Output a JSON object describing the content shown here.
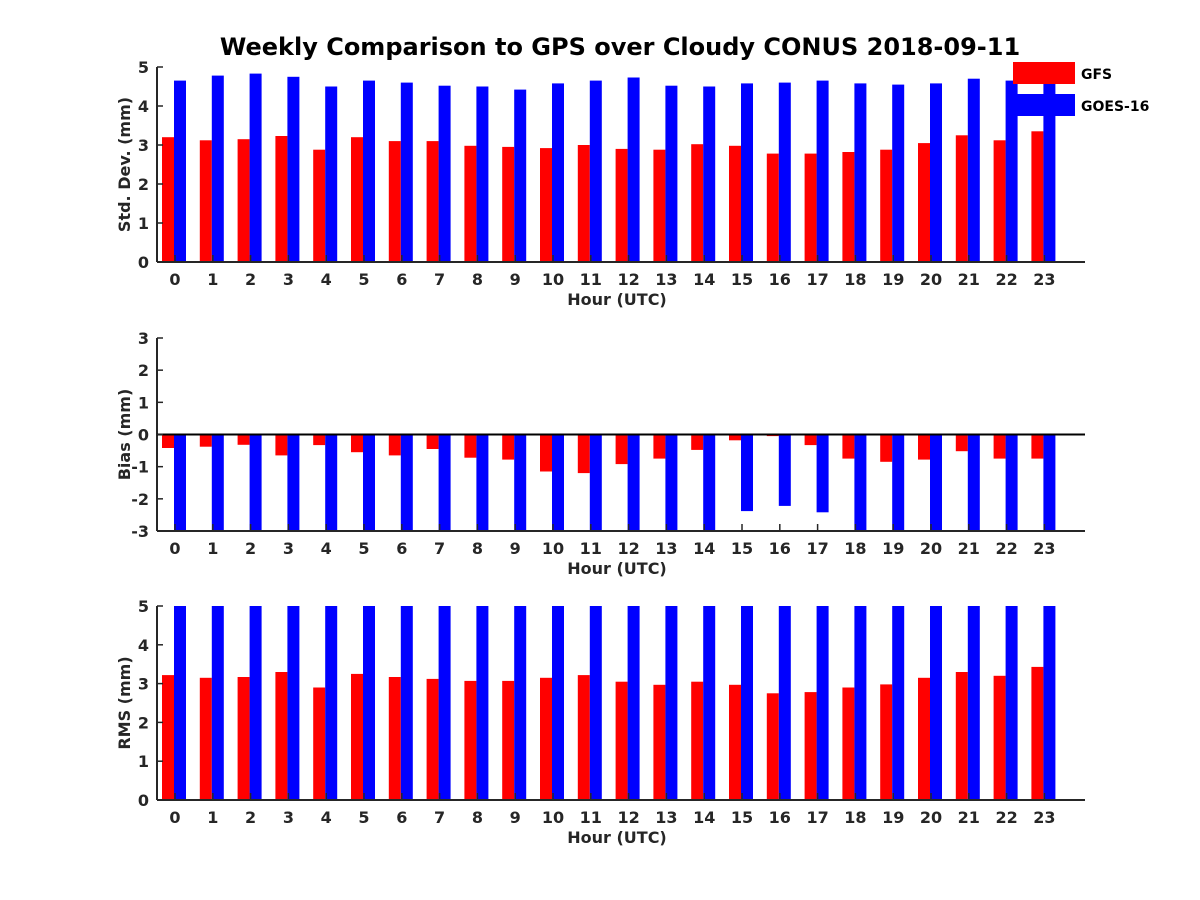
{
  "chart_data": {
    "type": "bar",
    "title": "Weekly Comparison to GPS over Cloudy CONUS 2018-09-11",
    "legend": {
      "placement": "top-right",
      "entries": [
        {
          "name": "GFS",
          "color": "#ff0000"
        },
        {
          "name": "GOES-16",
          "color": "#0000ff"
        }
      ]
    },
    "panels": [
      {
        "ylabel": "Std. Dev. (mm)",
        "xlabel": "Hour (UTC)",
        "ylim": [
          0,
          5
        ],
        "yticks": [
          "0",
          "1",
          "2",
          "3",
          "4",
          "5"
        ],
        "categories": [
          "0",
          "1",
          "2",
          "3",
          "4",
          "5",
          "6",
          "7",
          "8",
          "9",
          "10",
          "11",
          "12",
          "13",
          "14",
          "15",
          "16",
          "17",
          "18",
          "19",
          "20",
          "21",
          "22",
          "23"
        ],
        "series": [
          {
            "name": "GFS",
            "values": [
              3.2,
              3.12,
              3.15,
              3.23,
              2.88,
              3.2,
              3.1,
              3.1,
              2.98,
              2.95,
              2.92,
              3.0,
              2.9,
              2.88,
              3.02,
              2.98,
              2.78,
              2.78,
              2.82,
              2.88,
              3.05,
              3.25,
              3.12,
              3.35
            ]
          },
          {
            "name": "GOES-16",
            "values": [
              4.65,
              4.78,
              4.83,
              4.75,
              4.5,
              4.65,
              4.6,
              4.52,
              4.5,
              4.42,
              4.58,
              4.65,
              4.73,
              4.52,
              4.5,
              4.58,
              4.6,
              4.65,
              4.58,
              4.55,
              4.58,
              4.7,
              4.65,
              4.65
            ]
          }
        ]
      },
      {
        "ylabel": "Bias (mm)",
        "xlabel": "Hour (UTC)",
        "ylim": [
          -3,
          3
        ],
        "yticks": [
          "-3",
          "-2",
          "-1",
          "0",
          "1",
          "2",
          "3"
        ],
        "categories": [
          "0",
          "1",
          "2",
          "3",
          "4",
          "5",
          "6",
          "7",
          "8",
          "9",
          "10",
          "11",
          "12",
          "13",
          "14",
          "15",
          "16",
          "17",
          "18",
          "19",
          "20",
          "21",
          "22",
          "23"
        ],
        "series": [
          {
            "name": "GFS",
            "values": [
              -0.42,
              -0.38,
              -0.32,
              -0.65,
              -0.33,
              -0.55,
              -0.65,
              -0.45,
              -0.72,
              -0.78,
              -1.15,
              -1.2,
              -0.92,
              -0.75,
              -0.48,
              -0.18,
              -0.05,
              -0.33,
              -0.75,
              -0.85,
              -0.78,
              -0.52,
              -0.75,
              -0.75
            ]
          },
          {
            "name": "GOES-16",
            "values": [
              -3,
              -3,
              -3,
              -3,
              -3,
              -3,
              -3,
              -3,
              -3,
              -3,
              -3,
              -3,
              -3,
              -3,
              -3,
              -2.38,
              -2.22,
              -2.42,
              -3,
              -3,
              -3,
              -3,
              -3,
              -3
            ]
          }
        ]
      },
      {
        "ylabel": "RMS (mm)",
        "xlabel": "Hour (UTC)",
        "ylim": [
          0,
          5
        ],
        "yticks": [
          "0",
          "1",
          "2",
          "3",
          "4",
          "5"
        ],
        "categories": [
          "0",
          "1",
          "2",
          "3",
          "4",
          "5",
          "6",
          "7",
          "8",
          "9",
          "10",
          "11",
          "12",
          "13",
          "14",
          "15",
          "16",
          "17",
          "18",
          "19",
          "20",
          "21",
          "22",
          "23"
        ],
        "series": [
          {
            "name": "GFS",
            "values": [
              3.22,
              3.15,
              3.17,
              3.3,
              2.9,
              3.25,
              3.17,
              3.12,
              3.07,
              3.07,
              3.15,
              3.22,
              3.05,
              2.97,
              3.05,
              2.97,
              2.75,
              2.78,
              2.9,
              2.98,
              3.15,
              3.3,
              3.2,
              3.43
            ]
          },
          {
            "name": "GOES-16",
            "values": [
              5,
              5,
              5,
              5,
              5,
              5,
              5,
              5,
              5,
              5,
              5,
              5,
              5,
              5,
              5,
              5,
              5,
              5,
              5,
              5,
              5,
              5,
              5,
              5
            ]
          }
        ]
      }
    ]
  }
}
